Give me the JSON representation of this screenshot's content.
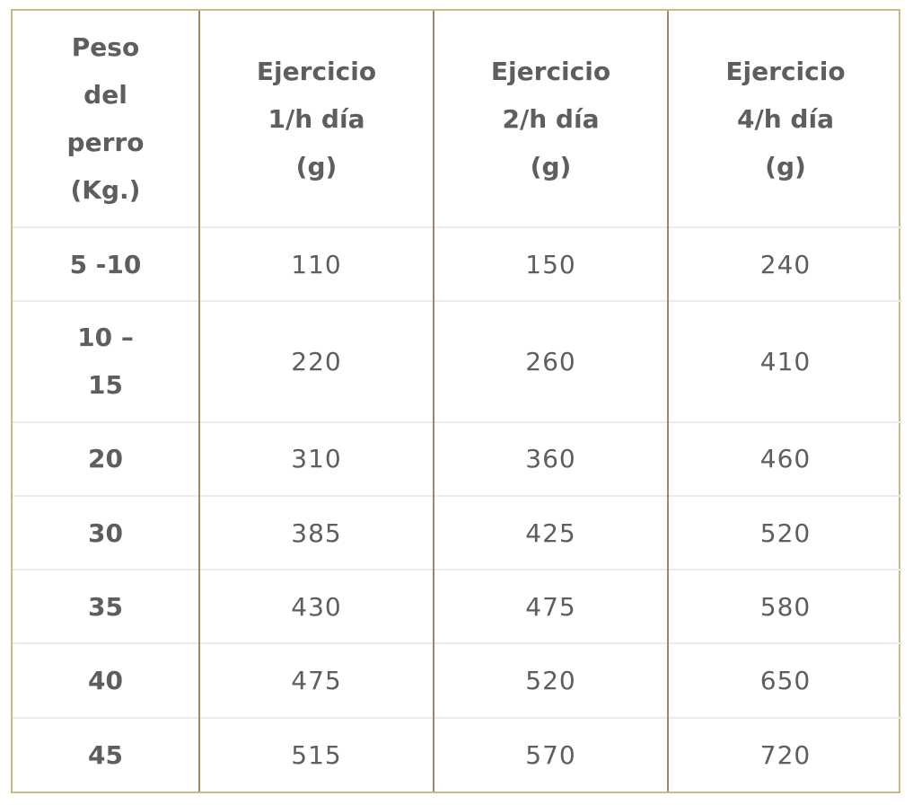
{
  "table": {
    "headers": [
      "Peso\ndel\nperro\n(Kg.)",
      "Ejercicio\n1/h día\n(g)",
      "Ejercicio\n2/h día\n(g)",
      "Ejercicio\n4/h día\n(g)"
    ],
    "rows": [
      {
        "weight": "5 -10",
        "values": [
          "110",
          "150",
          "240"
        ]
      },
      {
        "weight": "10 –\n15",
        "values": [
          "220",
          "260",
          "410"
        ]
      },
      {
        "weight": "20",
        "values": [
          "310",
          "360",
          "460"
        ]
      },
      {
        "weight": "30",
        "values": [
          "385",
          "425",
          "520"
        ]
      },
      {
        "weight": "35",
        "values": [
          "430",
          "475",
          "580"
        ]
      },
      {
        "weight": "40",
        "values": [
          "475",
          "520",
          "650"
        ]
      },
      {
        "weight": "45",
        "values": [
          "515",
          "570",
          "720"
        ]
      }
    ]
  },
  "colors": {
    "outer_border": "#c8b88a",
    "column_divider": "#9a8a66",
    "row_divider": "#ececec",
    "text": "#5e5e5e"
  }
}
